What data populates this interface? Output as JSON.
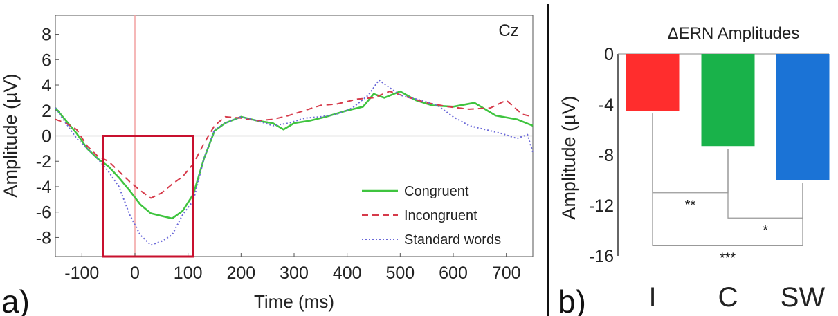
{
  "chart_data": [
    {
      "type": "line",
      "panel_label": "a)",
      "channel_label": "Cz",
      "xlabel": "Time (ms)",
      "ylabel": "Amplitude (µV)",
      "xlim": [
        -150,
        750
      ],
      "ylim": [
        -9.5,
        9.5
      ],
      "xticks": [
        -100,
        0,
        100,
        200,
        300,
        400,
        500,
        600,
        700
      ],
      "yticks": [
        8,
        6,
        4,
        2,
        0,
        -2,
        -4,
        -6,
        -8
      ],
      "legend_position": "bottom-right",
      "highlight_window": {
        "x": [
          -60,
          110
        ],
        "y": [
          0,
          -9.5
        ]
      },
      "event_marker_x": 0,
      "series": [
        {
          "name": "Congruent",
          "color": "#3fc43f",
          "style": "solid",
          "points": [
            [
              -150,
              2.2
            ],
            [
              -130,
              1.2
            ],
            [
              -110,
              0.2
            ],
            [
              -90,
              -1.0
            ],
            [
              -70,
              -1.8
            ],
            [
              -50,
              -2.4
            ],
            [
              -30,
              -3.3
            ],
            [
              -10,
              -4.3
            ],
            [
              10,
              -5.4
            ],
            [
              30,
              -6.1
            ],
            [
              50,
              -6.3
            ],
            [
              70,
              -6.5
            ],
            [
              90,
              -5.9
            ],
            [
              110,
              -4.6
            ],
            [
              130,
              -1.8
            ],
            [
              150,
              0.4
            ],
            [
              170,
              1.0
            ],
            [
              200,
              1.5
            ],
            [
              230,
              1.2
            ],
            [
              260,
              1.0
            ],
            [
              280,
              0.5
            ],
            [
              300,
              1.0
            ],
            [
              330,
              1.2
            ],
            [
              360,
              1.5
            ],
            [
              400,
              2.0
            ],
            [
              430,
              2.3
            ],
            [
              450,
              3.3
            ],
            [
              470,
              3.0
            ],
            [
              500,
              3.5
            ],
            [
              530,
              2.8
            ],
            [
              560,
              2.4
            ],
            [
              600,
              2.3
            ],
            [
              640,
              2.6
            ],
            [
              680,
              1.6
            ],
            [
              720,
              1.3
            ],
            [
              750,
              0.8
            ]
          ]
        },
        {
          "name": "Incongruent",
          "color": "#d63a4a",
          "style": "dashed",
          "points": [
            [
              -150,
              1.3
            ],
            [
              -130,
              1.0
            ],
            [
              -110,
              0.5
            ],
            [
              -90,
              -0.8
            ],
            [
              -70,
              -1.6
            ],
            [
              -50,
              -2.0
            ],
            [
              -30,
              -2.8
            ],
            [
              -10,
              -3.6
            ],
            [
              10,
              -4.3
            ],
            [
              30,
              -4.9
            ],
            [
              50,
              -4.5
            ],
            [
              70,
              -3.8
            ],
            [
              90,
              -3.2
            ],
            [
              110,
              -2.2
            ],
            [
              130,
              -0.6
            ],
            [
              150,
              0.8
            ],
            [
              170,
              1.5
            ],
            [
              200,
              1.4
            ],
            [
              230,
              1.2
            ],
            [
              260,
              1.3
            ],
            [
              290,
              1.6
            ],
            [
              320,
              2.0
            ],
            [
              350,
              2.4
            ],
            [
              380,
              2.5
            ],
            [
              420,
              2.9
            ],
            [
              450,
              3.0
            ],
            [
              480,
              3.5
            ],
            [
              510,
              3.1
            ],
            [
              550,
              2.6
            ],
            [
              590,
              2.3
            ],
            [
              630,
              2.1
            ],
            [
              670,
              2.2
            ],
            [
              700,
              2.8
            ],
            [
              730,
              1.7
            ],
            [
              750,
              1.5
            ]
          ]
        },
        {
          "name": "Standard words",
          "color": "#6a68d8",
          "style": "dotted",
          "points": [
            [
              -150,
              2.2
            ],
            [
              -130,
              1.0
            ],
            [
              -110,
              -0.2
            ],
            [
              -90,
              -1.0
            ],
            [
              -70,
              -1.8
            ],
            [
              -50,
              -2.8
            ],
            [
              -30,
              -4.0
            ],
            [
              -10,
              -6.2
            ],
            [
              10,
              -7.8
            ],
            [
              30,
              -8.6
            ],
            [
              50,
              -8.3
            ],
            [
              70,
              -7.8
            ],
            [
              90,
              -6.2
            ],
            [
              110,
              -5.1
            ],
            [
              130,
              -1.8
            ],
            [
              150,
              0.5
            ],
            [
              170,
              1.0
            ],
            [
              200,
              1.5
            ],
            [
              230,
              1.2
            ],
            [
              260,
              0.8
            ],
            [
              290,
              1.0
            ],
            [
              320,
              1.4
            ],
            [
              350,
              1.5
            ],
            [
              380,
              1.7
            ],
            [
              410,
              2.2
            ],
            [
              440,
              3.2
            ],
            [
              460,
              4.4
            ],
            [
              480,
              3.8
            ],
            [
              500,
              3.2
            ],
            [
              540,
              2.8
            ],
            [
              570,
              2.4
            ],
            [
              600,
              1.5
            ],
            [
              630,
              0.8
            ],
            [
              660,
              0.5
            ],
            [
              690,
              0.2
            ],
            [
              720,
              -0.2
            ],
            [
              740,
              0.1
            ],
            [
              750,
              -1.3
            ]
          ]
        }
      ]
    },
    {
      "type": "bar",
      "panel_label": "b)",
      "title": "ΔERN Amplitudes",
      "ylabel": "Amplitude (µV)",
      "categories": [
        "I",
        "C",
        "SW"
      ],
      "values": [
        -4.5,
        -7.3,
        -10.0
      ],
      "colors": [
        "#ff2d2d",
        "#19b24a",
        "#1b73d6"
      ],
      "ylim": [
        -16,
        0
      ],
      "yticks": [
        0,
        -4,
        -8,
        -12,
        -16
      ],
      "significance": [
        {
          "from": "I",
          "to": "C",
          "label": "**",
          "y": -11
        },
        {
          "from": "C",
          "to": "SW",
          "label": "*",
          "y": -13
        },
        {
          "from": "I",
          "to": "SW",
          "label": "***",
          "y": -15.2
        }
      ]
    }
  ]
}
